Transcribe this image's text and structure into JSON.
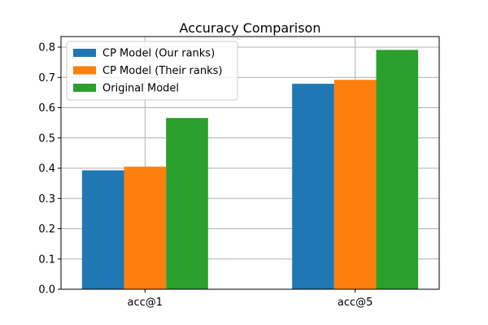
{
  "chart_data": {
    "type": "bar",
    "title": "Accuracy Comparison",
    "xlabel": "",
    "ylabel": "",
    "categories": [
      "acc@1",
      "acc@5"
    ],
    "series": [
      {
        "name": "CP Model (Our ranks)",
        "values": [
          0.393,
          0.679
        ],
        "color": "#1f77b4"
      },
      {
        "name": "CP Model (Their ranks)",
        "values": [
          0.405,
          0.692
        ],
        "color": "#ff7f0e"
      },
      {
        "name": "Original Model",
        "values": [
          0.566,
          0.791
        ],
        "color": "#2ca02c"
      }
    ],
    "ylim": [
      0,
      0.835
    ],
    "yticks": [
      "0.0",
      "0.1",
      "0.2",
      "0.3",
      "0.4",
      "0.5",
      "0.6",
      "0.7",
      "0.8"
    ],
    "grid": true,
    "legend_position": "top-left"
  }
}
